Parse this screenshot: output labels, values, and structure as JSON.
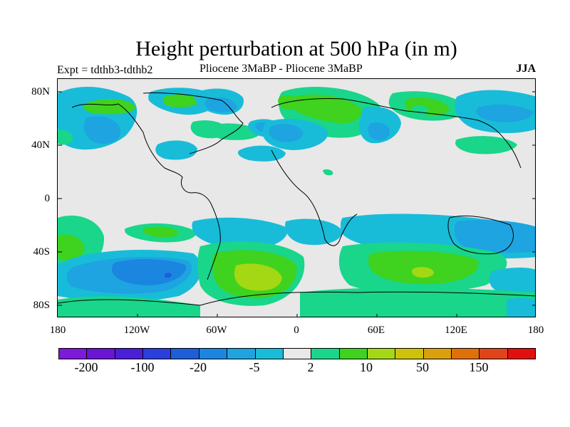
{
  "title": "Height perturbation at 500 hPa (in m)",
  "left_label": "Expt = tdthb3-tdthb2",
  "center_label": "Pliocene   3MaBP - Pliocene   3MaBP",
  "right_label": "JJA",
  "axes": {
    "lat_ticks": [
      "80N",
      "40N",
      "0",
      "40S",
      "80S"
    ],
    "lon_ticks": [
      "180",
      "120W",
      "60W",
      "0",
      "60E",
      "120E",
      "180"
    ]
  },
  "colorbar": {
    "colors": [
      "#7d1ad9",
      "#6a14d4",
      "#4a1fd6",
      "#2a3fdc",
      "#1e5ed8",
      "#1a86e0",
      "#1ea4e0",
      "#18bcd8",
      "#e8e8e8",
      "#19d68a",
      "#3fd21e",
      "#a4d814",
      "#cfc20c",
      "#dca00c",
      "#e0700a",
      "#e0441a",
      "#e01010"
    ],
    "labels": [
      "-200",
      "-100",
      "-20",
      "-5",
      "2",
      "10",
      "50",
      "150"
    ]
  },
  "palette": {
    "neutral": "#e8e8e8",
    "light_blue": "#18bcd8",
    "blue": "#1ea4e0",
    "mid_blue": "#1a86e0",
    "dark_blue": "#1e5ed8",
    "teal_green": "#19d68a",
    "green": "#3fd21e",
    "yellow_green": "#a4d814"
  }
}
